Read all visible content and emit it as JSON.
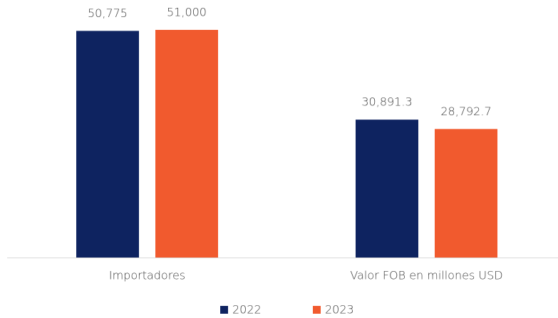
{
  "chart_data": {
    "type": "bar",
    "categories": [
      "Importadores",
      "Valor FOB en millones USD"
    ],
    "series": [
      {
        "name": "2022",
        "color": "#0e2360",
        "values": [
          50775,
          30891.3
        ],
        "value_labels": [
          "50,775",
          "30,891.3"
        ]
      },
      {
        "name": "2023",
        "color": "#f15a2e",
        "values": [
          51000,
          28792.7
        ],
        "value_labels": [
          "51,000",
          "28,792.7"
        ]
      }
    ],
    "legend": "bottom"
  }
}
